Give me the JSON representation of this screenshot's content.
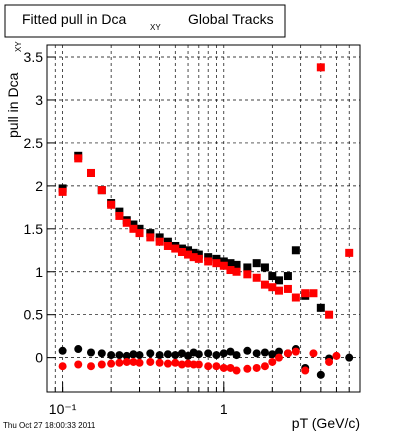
{
  "chart_data": {
    "type": "scatter",
    "title": "Fitted pull in Dca",
    "title_subscript": "XY",
    "title_suffix": "Global Tracks",
    "y_label": "pull in Dca",
    "y_label_superscript": "XY",
    "x_label": "pT (GeV/c)",
    "timestamp": "Thu Oct 27 18:00:33 2011",
    "log_x": true,
    "grid": true,
    "xlim": [
      0.08,
      7
    ],
    "ylim": [
      -0.4,
      3.64
    ],
    "xticks": [
      {
        "value": 0.1,
        "label": "10⁻¹"
      },
      1
    ],
    "xgrid": [
      0.09,
      0.1,
      0.2,
      0.3,
      0.4,
      0.5,
      0.6,
      0.7,
      0.8,
      0.9,
      1,
      2,
      3,
      4,
      5,
      6,
      7
    ],
    "yticks": [
      0,
      0.5,
      1,
      1.5,
      2,
      2.5,
      3,
      3.5
    ],
    "x": [
      0.1,
      0.125,
      0.15,
      0.175,
      0.2,
      0.225,
      0.25,
      0.275,
      0.3,
      0.35,
      0.4,
      0.45,
      0.5,
      0.55,
      0.6,
      0.65,
      0.7,
      0.8,
      0.9,
      1.0,
      1.1,
      1.2,
      1.4,
      1.6,
      1.8,
      2.0,
      2.2,
      2.5,
      2.8,
      3.2,
      3.6,
      4.0,
      4.5,
      5.0,
      6.0
    ],
    "series": [
      {
        "marker": "square",
        "color": "#000000",
        "values": [
          1.97,
          2.35,
          2.15,
          1.95,
          1.8,
          1.7,
          1.6,
          1.55,
          1.5,
          1.45,
          1.4,
          1.35,
          1.3,
          1.27,
          1.25,
          1.22,
          1.2,
          1.17,
          1.15,
          1.12,
          1.1,
          1.08,
          1.05,
          1.1,
          1.05,
          0.95,
          0.9,
          0.95,
          1.25,
          0.72,
          null,
          0.58,
          null,
          null,
          null
        ]
      },
      {
        "marker": "square",
        "color": "#ff0000",
        "values": [
          1.93,
          2.32,
          2.15,
          1.95,
          1.78,
          1.65,
          1.57,
          1.5,
          1.45,
          1.4,
          1.35,
          1.3,
          1.27,
          1.23,
          1.2,
          1.17,
          1.15,
          1.12,
          1.1,
          1.07,
          1.02,
          1.0,
          0.97,
          0.93,
          0.85,
          0.82,
          0.78,
          0.8,
          0.7,
          0.75,
          0.75,
          3.38,
          0.5,
          null,
          1.22
        ]
      },
      {
        "marker": "circle",
        "color": "#000000",
        "values": [
          0.08,
          0.1,
          0.06,
          0.05,
          0.03,
          0.03,
          0.02,
          0.04,
          0.03,
          0.05,
          0.03,
          0.04,
          0.03,
          0.05,
          0.02,
          0.06,
          0.04,
          0.05,
          0.03,
          0.05,
          0.07,
          0.03,
          0.08,
          0.05,
          0.06,
          0.04,
          0.07,
          0.05,
          0.1,
          -0.12,
          null,
          -0.2,
          -0.01,
          null,
          0.0
        ]
      },
      {
        "marker": "circle",
        "color": "#ff0000",
        "values": [
          -0.1,
          -0.08,
          -0.1,
          -0.08,
          -0.07,
          -0.06,
          -0.05,
          -0.05,
          -0.06,
          -0.05,
          -0.06,
          -0.07,
          -0.06,
          -0.08,
          -0.07,
          -0.08,
          -0.08,
          -0.1,
          -0.1,
          -0.12,
          -0.12,
          -0.15,
          -0.13,
          -0.12,
          -0.1,
          -0.05,
          0.0,
          0.05,
          0.07,
          -0.15,
          0.05,
          null,
          -0.05,
          0.02,
          null
        ]
      }
    ]
  }
}
